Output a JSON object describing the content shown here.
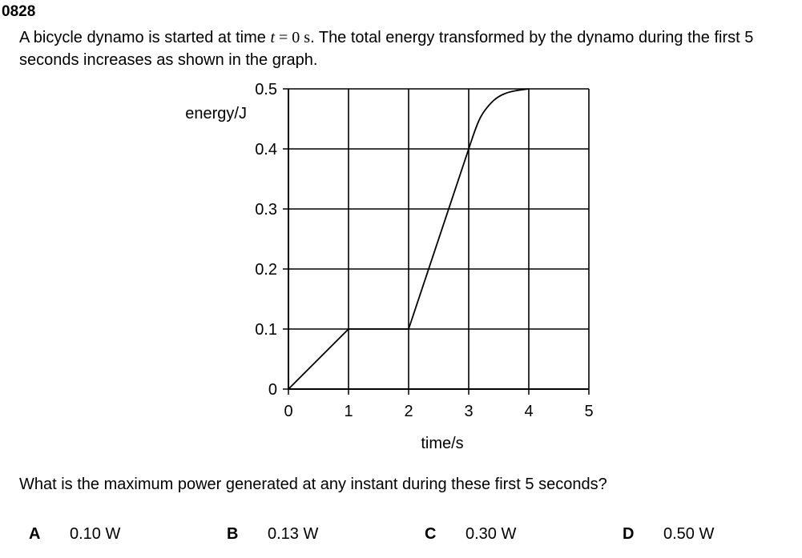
{
  "question_number": "0828",
  "stem": {
    "part1": "A bicycle dynamo is started at time ",
    "var": "t",
    "eq": " = 0 s",
    "part2": ". The total energy transformed by the dynamo during the first 5 seconds increases as shown in the graph."
  },
  "question": "What is the maximum power generated at any instant during these first 5 seconds?",
  "options": [
    {
      "letter": "A",
      "value": "0.10 W"
    },
    {
      "letter": "B",
      "value": "0.13 W"
    },
    {
      "letter": "C",
      "value": "0.30 W"
    },
    {
      "letter": "D",
      "value": "0.50 W"
    }
  ],
  "chart_data": {
    "type": "line",
    "title": "",
    "xlabel": "time/s",
    "ylabel": "energy/J",
    "xlim": [
      0,
      5
    ],
    "ylim": [
      0,
      0.5
    ],
    "xticks": [
      "0",
      "1",
      "2",
      "3",
      "4",
      "5"
    ],
    "yticks": [
      "0",
      "0.1",
      "0.2",
      "0.3",
      "0.4",
      "0.5"
    ],
    "grid": true,
    "series": [
      {
        "points": [
          [
            0,
            0
          ],
          [
            1,
            0.1
          ],
          [
            2,
            0.1
          ],
          [
            3,
            0.4
          ],
          [
            3.1,
            0.43
          ],
          [
            3.2,
            0.455
          ],
          [
            3.35,
            0.475
          ],
          [
            3.5,
            0.488
          ],
          [
            3.7,
            0.496
          ],
          [
            4,
            0.5
          ]
        ]
      }
    ]
  }
}
